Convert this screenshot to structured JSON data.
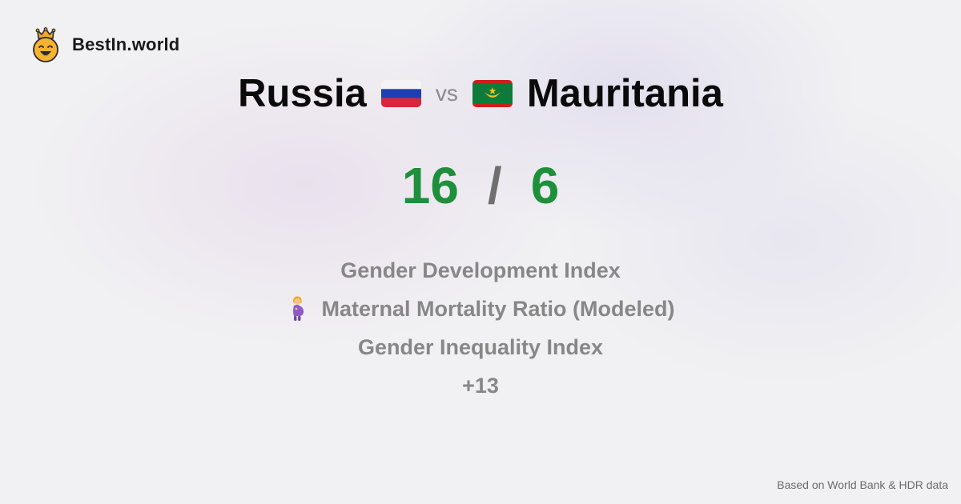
{
  "brand": {
    "name": "BestIn.world",
    "logo_icon": "crowned-smiley-icon"
  },
  "comparison": {
    "left_country": "Russia",
    "left_flag_icon": "russia-flag-icon",
    "vs_label": "vs",
    "right_country": "Mauritania",
    "right_flag_icon": "mauritania-flag-icon"
  },
  "score": {
    "left": "16",
    "separator": "/",
    "right": "6",
    "color": "#1e8f3a"
  },
  "metrics": [
    {
      "label": "Gender Development Index"
    },
    {
      "label": "Maternal Mortality Ratio (Modeled)",
      "icon": "pregnant-woman-icon"
    },
    {
      "label": "Gender Inequality Index"
    },
    {
      "label": "+13"
    }
  ],
  "footer": {
    "source_text": "Based on World Bank & HDR data"
  }
}
